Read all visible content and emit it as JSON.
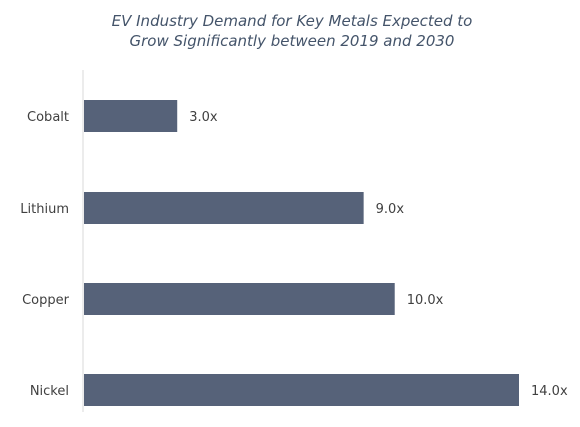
{
  "chart_data": {
    "type": "bar",
    "orientation": "horizontal",
    "title": [
      "EV Industry Demand for Key Metals Expected to",
      "Grow Significantly between 2019 and 2030"
    ],
    "categories": [
      "Cobalt",
      "Lithium",
      "Copper",
      "Nickel"
    ],
    "values": [
      3.0,
      9.0,
      10.0,
      14.0
    ],
    "value_labels": [
      "3.0x",
      "9.0x",
      "10.0x",
      "14.0x"
    ],
    "xlim": [
      0,
      14
    ],
    "grid": false,
    "legend": "none",
    "bar_color": "#566279",
    "axis_color": "#d9d9d9"
  }
}
